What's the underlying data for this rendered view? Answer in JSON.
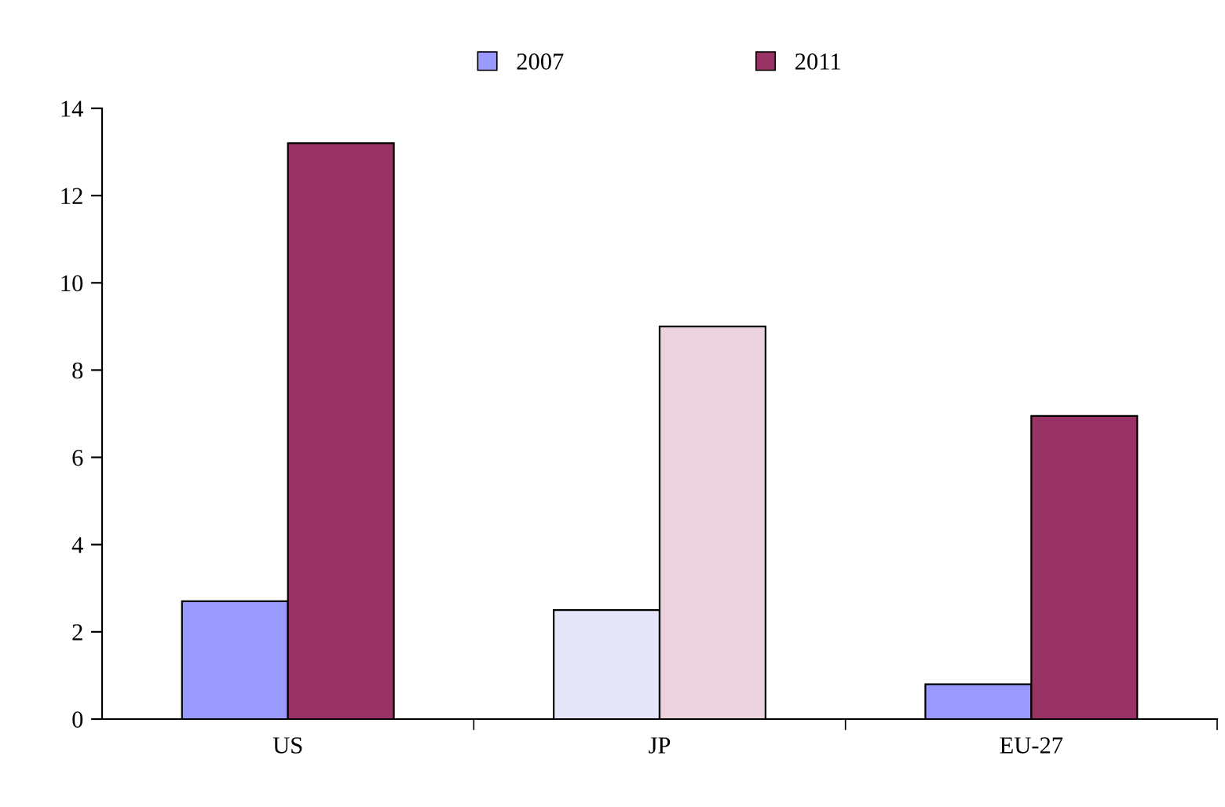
{
  "chart_data": {
    "type": "bar",
    "categories": [
      "US",
      "JP",
      "EU-27"
    ],
    "series": [
      {
        "name": "2007",
        "color": "#9999ff",
        "colors": [
          "#9999ff",
          "#e6e6fa",
          "#9999ff"
        ],
        "values": [
          2.7,
          2.5,
          0.8
        ]
      },
      {
        "name": "2011",
        "color": "#993366",
        "colors": [
          "#993366",
          "#ead3df",
          "#993366"
        ],
        "values": [
          13.2,
          9.0,
          6.95
        ]
      }
    ],
    "ylim": [
      0,
      14
    ],
    "yticks": [
      0,
      2,
      4,
      6,
      8,
      10,
      12,
      14
    ],
    "grid": false,
    "legend": "top"
  }
}
